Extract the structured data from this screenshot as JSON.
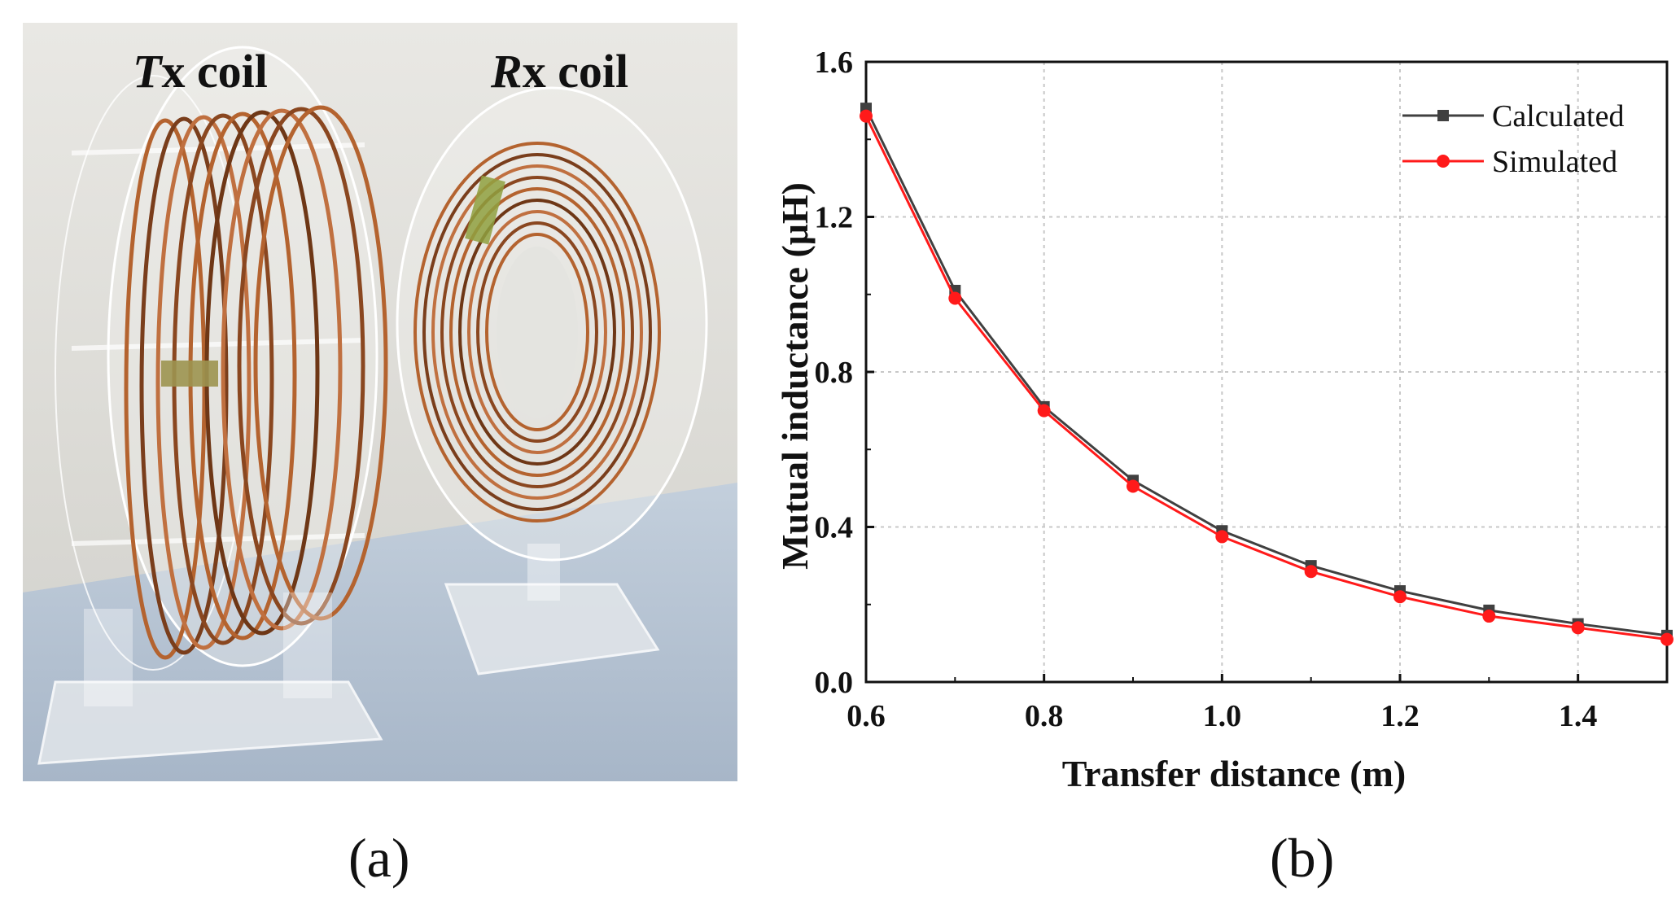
{
  "panel_a": {
    "tx_label_italic": "T",
    "tx_label_rest": "x coil",
    "rx_label_italic": "R",
    "rx_label_rest": "x coil",
    "caption": "(a)"
  },
  "panel_b": {
    "caption": "(b)"
  },
  "colors": {
    "calculated": "#404040",
    "simulated": "#ff1a1a",
    "copper": "#a8582c"
  },
  "chart_data": {
    "type": "line",
    "title": "",
    "xlabel": "Transfer distance (m)",
    "ylabel": "Mutual inductance (μH)",
    "xlim": [
      0.6,
      1.5
    ],
    "ylim": [
      0.0,
      1.6
    ],
    "xticks": [
      0.6,
      0.8,
      1.0,
      1.2,
      1.4
    ],
    "xtick_labels": [
      "0.6",
      "0.8",
      "1.0",
      "1.2",
      "1.4"
    ],
    "yticks": [
      0.0,
      0.4,
      0.8,
      1.2,
      1.6
    ],
    "ytick_labels": [
      "0.0",
      "0.4",
      "0.8",
      "1.2",
      "1.6"
    ],
    "grid": true,
    "legend_position": "top-right",
    "x": [
      0.6,
      0.7,
      0.8,
      0.9,
      1.0,
      1.1,
      1.2,
      1.3,
      1.4,
      1.5
    ],
    "series": [
      {
        "name": "Calculated",
        "marker": "square",
        "color": "#404040",
        "values": [
          1.48,
          1.01,
          0.71,
          0.52,
          0.39,
          0.3,
          0.235,
          0.185,
          0.15,
          0.12
        ]
      },
      {
        "name": "Simulated",
        "marker": "circle",
        "color": "#ff1a1a",
        "values": [
          1.46,
          0.99,
          0.7,
          0.505,
          0.375,
          0.285,
          0.22,
          0.17,
          0.14,
          0.11
        ]
      }
    ]
  }
}
